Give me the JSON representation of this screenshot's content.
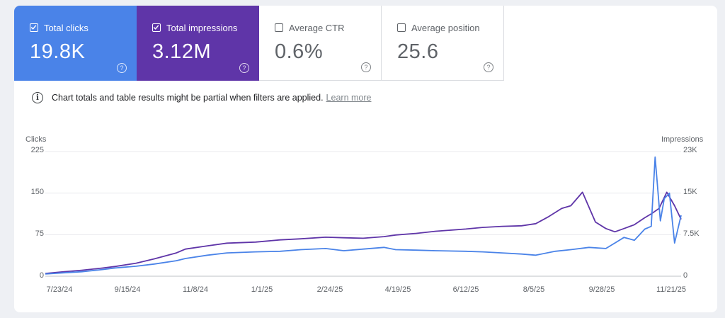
{
  "metrics": [
    {
      "label": "Total clicks",
      "value": "19.8K",
      "checked": true
    },
    {
      "label": "Total impressions",
      "value": "3.12M",
      "checked": true
    },
    {
      "label": "Average CTR",
      "value": "0.6%",
      "checked": false
    },
    {
      "label": "Average position",
      "value": "25.6",
      "checked": false
    }
  ],
  "help_glyph": "?",
  "notice": {
    "icon": "info-icon",
    "text": "Chart totals and table results might be partial when filters are applied.",
    "link": "Learn more"
  },
  "colors": {
    "clicks": "#4a83e8",
    "impressions": "#5f35a8",
    "grid": "#e8eaed"
  },
  "chart_data": {
    "type": "line",
    "left_axis": {
      "title": "Clicks",
      "ticks": [
        "225",
        "150",
        "75",
        "0"
      ],
      "range": [
        0,
        225
      ]
    },
    "right_axis": {
      "title": "Impressions",
      "ticks": [
        "23K",
        "15K",
        "7.5K",
        "0"
      ],
      "range": [
        0,
        23000
      ]
    },
    "x_ticks": [
      "7/23/24",
      "9/15/24",
      "11/8/24",
      "1/1/25",
      "2/24/25",
      "4/19/25",
      "6/12/25",
      "8/5/25",
      "9/28/25",
      "11/21/25"
    ],
    "x_range": [
      "2024-07-23",
      "2025-11-25"
    ],
    "grid": true,
    "series": [
      {
        "name": "Total clicks",
        "axis": "left",
        "color": "#4a83e8",
        "x": [
          "2024-07-23",
          "2024-08-05",
          "2024-08-20",
          "2024-09-05",
          "2024-09-15",
          "2024-10-01",
          "2024-10-15",
          "2024-11-01",
          "2024-11-08",
          "2024-11-25",
          "2024-12-10",
          "2025-01-01",
          "2025-01-20",
          "2025-02-05",
          "2025-02-24",
          "2025-03-10",
          "2025-03-25",
          "2025-04-10",
          "2025-04-19",
          "2025-05-05",
          "2025-05-20",
          "2025-06-12",
          "2025-06-25",
          "2025-07-10",
          "2025-07-25",
          "2025-08-05",
          "2025-08-20",
          "2025-09-01",
          "2025-09-15",
          "2025-09-28",
          "2025-10-05",
          "2025-10-12",
          "2025-10-20",
          "2025-10-28",
          "2025-11-02",
          "2025-11-05",
          "2025-11-09",
          "2025-11-12",
          "2025-11-16",
          "2025-11-20",
          "2025-11-25"
        ],
        "values": [
          4,
          6,
          8,
          12,
          15,
          18,
          22,
          28,
          32,
          38,
          42,
          44,
          45,
          48,
          50,
          46,
          49,
          52,
          48,
          47,
          46,
          45,
          44,
          42,
          40,
          38,
          45,
          48,
          52,
          50,
          60,
          70,
          65,
          85,
          90,
          215,
          100,
          140,
          150,
          60,
          110
        ]
      },
      {
        "name": "Total impressions",
        "axis": "right",
        "color": "#5f35a8",
        "x": [
          "2024-07-23",
          "2024-08-05",
          "2024-08-20",
          "2024-09-05",
          "2024-09-15",
          "2024-10-01",
          "2024-10-15",
          "2024-11-01",
          "2024-11-08",
          "2024-11-25",
          "2024-12-10",
          "2025-01-01",
          "2025-01-20",
          "2025-02-05",
          "2025-02-24",
          "2025-03-10",
          "2025-03-25",
          "2025-04-10",
          "2025-04-19",
          "2025-05-05",
          "2025-05-20",
          "2025-06-12",
          "2025-06-25",
          "2025-07-10",
          "2025-07-25",
          "2025-08-05",
          "2025-08-15",
          "2025-08-25",
          "2025-09-01",
          "2025-09-10",
          "2025-09-20",
          "2025-09-28",
          "2025-10-05",
          "2025-10-12",
          "2025-10-20",
          "2025-10-28",
          "2025-11-02",
          "2025-11-08",
          "2025-11-14",
          "2025-11-20",
          "2025-11-25"
        ],
        "values": [
          500,
          800,
          1100,
          1500,
          1800,
          2400,
          3200,
          4300,
          5000,
          5600,
          6100,
          6300,
          6700,
          6900,
          7200,
          7100,
          7000,
          7300,
          7600,
          7900,
          8300,
          8700,
          9000,
          9200,
          9300,
          9700,
          11000,
          12500,
          13000,
          15500,
          10000,
          8800,
          8200,
          8800,
          9500,
          10800,
          11500,
          12500,
          15500,
          13000,
          10500
        ]
      }
    ]
  }
}
